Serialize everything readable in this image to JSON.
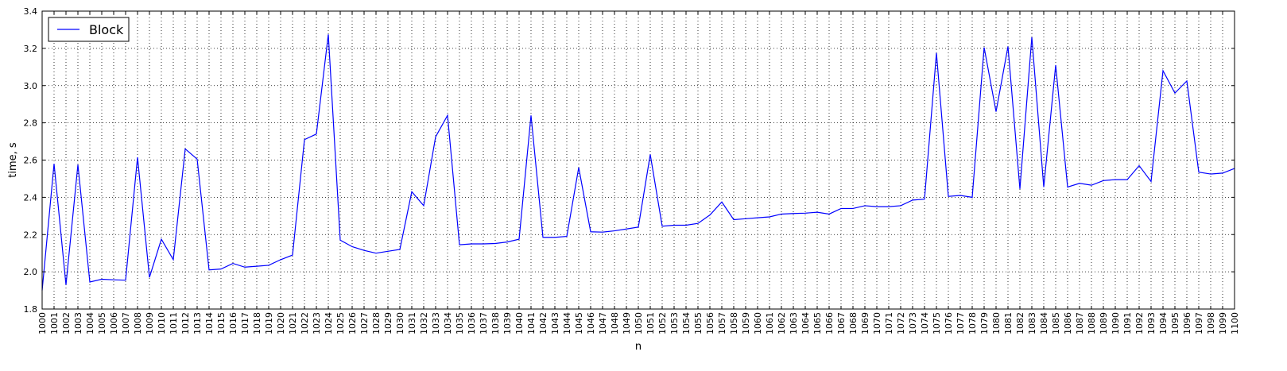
{
  "chart_data": {
    "type": "line",
    "xlabel": "n",
    "ylabel": "time, s",
    "xlim": [
      1000,
      1100
    ],
    "ylim": [
      1.8,
      3.4
    ],
    "yticks": [
      "1.8",
      "2.0",
      "2.2",
      "2.4",
      "2.6",
      "2.8",
      "3.0",
      "3.2",
      "3.4"
    ],
    "grid": true,
    "legend_position": "top-left",
    "series": [
      {
        "name": "Block",
        "color": "#0000ff",
        "x": [
          1000,
          1001,
          1002,
          1003,
          1004,
          1005,
          1006,
          1007,
          1008,
          1009,
          1010,
          1011,
          1012,
          1013,
          1014,
          1015,
          1016,
          1017,
          1018,
          1019,
          1020,
          1021,
          1022,
          1023,
          1024,
          1025,
          1026,
          1027,
          1028,
          1029,
          1030,
          1031,
          1032,
          1033,
          1034,
          1035,
          1036,
          1037,
          1038,
          1039,
          1040,
          1041,
          1042,
          1043,
          1044,
          1045,
          1046,
          1047,
          1048,
          1049,
          1050,
          1051,
          1052,
          1053,
          1054,
          1055,
          1056,
          1057,
          1058,
          1059,
          1060,
          1061,
          1062,
          1063,
          1064,
          1065,
          1066,
          1067,
          1068,
          1069,
          1070,
          1071,
          1072,
          1073,
          1074,
          1075,
          1076,
          1077,
          1078,
          1079,
          1080,
          1081,
          1082,
          1083,
          1084,
          1085,
          1086,
          1087,
          1088,
          1089,
          1090,
          1091,
          1092,
          1093,
          1094,
          1095,
          1096,
          1097,
          1098,
          1099,
          1100
        ],
        "values": [
          1.9,
          2.58,
          1.93,
          2.575,
          1.945,
          1.96,
          1.957,
          1.955,
          2.615,
          1.97,
          2.175,
          2.065,
          2.66,
          2.605,
          2.01,
          2.015,
          2.045,
          2.025,
          2.03,
          2.035,
          2.065,
          2.09,
          2.71,
          2.74,
          3.275,
          2.17,
          2.135,
          2.115,
          2.1,
          2.11,
          2.12,
          2.43,
          2.355,
          2.725,
          2.84,
          2.145,
          2.15,
          2.15,
          2.152,
          2.16,
          2.175,
          2.84,
          2.185,
          2.185,
          2.19,
          2.56,
          2.215,
          2.213,
          2.22,
          2.23,
          2.24,
          2.63,
          2.245,
          2.25,
          2.25,
          2.26,
          2.305,
          2.375,
          2.28,
          2.285,
          2.29,
          2.295,
          2.31,
          2.313,
          2.315,
          2.32,
          2.31,
          2.34,
          2.34,
          2.355,
          2.35,
          2.35,
          2.355,
          2.385,
          2.39,
          3.175,
          2.405,
          2.41,
          2.4,
          3.205,
          2.86,
          3.21,
          2.445,
          3.26,
          2.455,
          3.11,
          2.455,
          2.475,
          2.465,
          2.49,
          2.495,
          2.495,
          2.57,
          2.485,
          3.08,
          2.96,
          3.025,
          2.535,
          2.525,
          2.53,
          2.555
        ]
      }
    ]
  }
}
